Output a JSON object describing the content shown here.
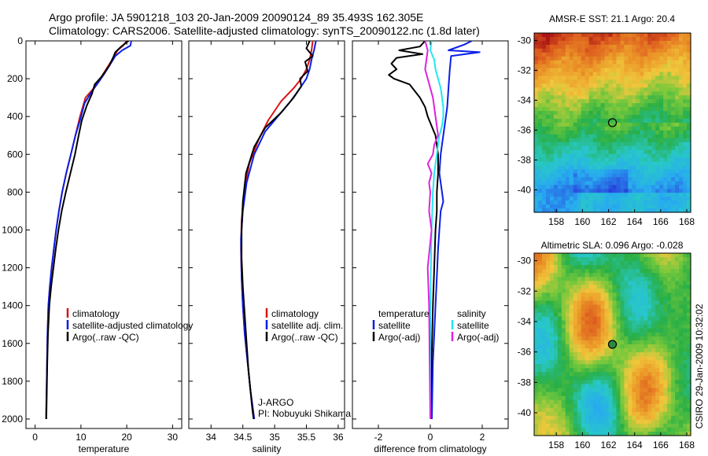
{
  "title": {
    "line1": "Argo profile: JA 5901218_103 20-Jan-2009 20090124_89 35.493S 162.305E",
    "line2": "Climatology: CARS2006. Satellite-adjusted climatology: synTS_20090122.nc (1.8d later)"
  },
  "credit": "CSIRO 29-Jan-2009 10:32:02",
  "colors": {
    "climatology": "#dd1111",
    "satellite": "#0a1ee6",
    "argo": "#000000",
    "sat_salinity": "#22e8f0",
    "argo_salinity": "#dd22dd"
  },
  "chart_data": [
    {
      "type": "line",
      "title": "",
      "xlabel": "temperature",
      "ylabel": "",
      "xlim": [
        -2,
        32
      ],
      "ylim": [
        2050,
        0
      ],
      "xticks": [
        "0",
        "10",
        "20",
        "30"
      ],
      "yticks": [
        "0",
        "200",
        "400",
        "600",
        "800",
        "1000",
        "1200",
        "1400",
        "1600",
        "1800",
        "2000"
      ],
      "legend": [
        "climatology",
        "satellite-adjusted climatology",
        "Argo(..raw -QC)"
      ],
      "series": [
        {
          "name": "climatology",
          "color": "#dd1111",
          "x": [
            20,
            19.2,
            18,
            16.8,
            15.5,
            14.2,
            12.8,
            11,
            9.8,
            8.8,
            7.8,
            6.8,
            5.9,
            5.2,
            4.6,
            4.1,
            3.6,
            3.2,
            2.9,
            2.7,
            2.6,
            2.5,
            2.4
          ],
          "y": [
            0,
            25,
            50,
            100,
            150,
            200,
            250,
            300,
            400,
            500,
            600,
            700,
            800,
            900,
            1000,
            1100,
            1200,
            1300,
            1400,
            1550,
            1700,
            1850,
            2000
          ]
        },
        {
          "name": "satellite-adjusted climatology",
          "color": "#0a1ee6",
          "x": [
            21,
            20.8,
            19,
            17.5,
            16.5,
            15.2,
            13.8,
            12.3,
            10.8,
            9.8,
            8.8,
            7.8,
            6.8,
            5.9,
            5.2,
            4.6,
            4.1,
            3.6,
            3.2,
            2.9,
            2.7,
            2.6,
            2.5,
            2.4
          ],
          "y": [
            0,
            25,
            50,
            80,
            120,
            170,
            220,
            270,
            330,
            420,
            500,
            600,
            700,
            800,
            900,
            1000,
            1100,
            1200,
            1300,
            1400,
            1550,
            1700,
            1850,
            2000
          ]
        },
        {
          "name": "Argo(..raw -QC)",
          "color": "#000000",
          "x": [
            20.4,
            18.8,
            17.5,
            17,
            16.2,
            14.5,
            13,
            12.4,
            11.3,
            10.2,
            9.5,
            8.7,
            7.7,
            6.7,
            5.8,
            5.1,
            4.5,
            4,
            3.5,
            3.1,
            2.8,
            2.65,
            2.55,
            2.45
          ],
          "y": [
            0,
            30,
            60,
            90,
            130,
            190,
            230,
            280,
            340,
            420,
            500,
            600,
            700,
            800,
            900,
            1000,
            1100,
            1200,
            1300,
            1400,
            1550,
            1700,
            1850,
            2000
          ]
        }
      ]
    },
    {
      "type": "line",
      "title": "",
      "xlabel": "salinity",
      "ylabel": "",
      "xlim": [
        33.65,
        36.1
      ],
      "ylim": [
        2050,
        0
      ],
      "xticks": [
        "34",
        "34.5",
        "35",
        "35.5",
        "36"
      ],
      "legend": [
        "climatology",
        "satellite adj. clim.",
        "Argo(..raw -QC)"
      ],
      "annotation": {
        "line1": "J-ARGO",
        "line2": "PI: Nobuyuki Shikama"
      },
      "series": [
        {
          "name": "climatology",
          "color": "#dd1111",
          "x": [
            35.6,
            35.58,
            35.55,
            35.5,
            35.42,
            35.3,
            35.1,
            34.9,
            34.75,
            34.6,
            34.52,
            34.48,
            34.47,
            34.48,
            34.5,
            34.53,
            34.56,
            34.59,
            34.62,
            34.64,
            34.66,
            34.68
          ],
          "y": [
            0,
            50,
            100,
            150,
            200,
            250,
            320,
            420,
            520,
            650,
            800,
            950,
            1100,
            1250,
            1400,
            1550,
            1650,
            1750,
            1850,
            1900,
            1950,
            2000
          ]
        },
        {
          "name": "satellite adj. clim.",
          "color": "#0a1ee6",
          "x": [
            35.65,
            35.62,
            35.58,
            35.55,
            35.5,
            35.4,
            35.25,
            35.05,
            34.85,
            34.68,
            34.56,
            34.5,
            34.47,
            34.48,
            34.5,
            34.53,
            34.56,
            34.59,
            34.62,
            34.64,
            34.66,
            34.68
          ],
          "y": [
            0,
            50,
            100,
            150,
            200,
            250,
            320,
            400,
            480,
            600,
            750,
            900,
            1050,
            1250,
            1400,
            1550,
            1650,
            1750,
            1850,
            1900,
            1950,
            2000
          ]
        },
        {
          "name": "Argo(..raw -QC)",
          "color": "#000000",
          "x": [
            35.55,
            35.5,
            35.6,
            35.48,
            35.52,
            35.4,
            35.42,
            35.3,
            35.1,
            34.85,
            34.68,
            34.55,
            34.5,
            34.48,
            34.48,
            34.5,
            34.53,
            34.56,
            34.59,
            34.62,
            34.65,
            34.67
          ],
          "y": [
            0,
            40,
            80,
            110,
            160,
            200,
            240,
            300,
            380,
            460,
            560,
            700,
            850,
            1000,
            1150,
            1300,
            1450,
            1600,
            1750,
            1850,
            1950,
            2000
          ]
        }
      ]
    },
    {
      "type": "line",
      "title": "",
      "xlabel": "difference from climatology",
      "ylabel": "",
      "xlim": [
        -3,
        3
      ],
      "ylim": [
        2050,
        0
      ],
      "xticks": [
        "-2",
        "0",
        "2"
      ],
      "legend_left": [
        "temperature",
        "satellite",
        "Argo(-adj)"
      ],
      "legend_right": [
        "salinity",
        "satellite",
        "Argo(-adj)"
      ],
      "series": [
        {
          "name": "temperature satellite",
          "color": "#0a1ee6",
          "x": [
            1.6,
            1.3,
            0.7,
            1.9,
            0.8,
            0.75,
            0.7,
            0.65,
            0.5,
            0.4,
            0.35,
            0.4,
            0.45,
            0.5,
            0.4,
            0.35,
            0.3,
            0.25,
            0.2,
            0.15,
            0.1,
            0.08,
            0.06
          ],
          "y": [
            0,
            20,
            50,
            60,
            80,
            150,
            250,
            350,
            500,
            600,
            700,
            750,
            800,
            850,
            900,
            1000,
            1100,
            1250,
            1400,
            1550,
            1700,
            1850,
            2000
          ]
        },
        {
          "name": "temperature Argo(-adj)",
          "color": "#000000",
          "x": [
            -0.2,
            -0.4,
            -1.2,
            -0.3,
            -1.3,
            -1.5,
            -1.3,
            -1.6,
            -1.4,
            -0.8,
            -0.4,
            -0.2,
            -0.1,
            0.2,
            0.3,
            0.3,
            0.25,
            0.25,
            0.2,
            0.15,
            0.1,
            0.05,
            0.0
          ],
          "y": [
            0,
            30,
            50,
            70,
            90,
            120,
            150,
            180,
            200,
            230,
            300,
            350,
            400,
            500,
            600,
            700,
            800,
            900,
            1000,
            1200,
            1400,
            1700,
            2000
          ]
        },
        {
          "name": "salinity satellite",
          "color": "#22e8f0",
          "x": [
            0.05,
            0.0,
            0.15,
            0.2,
            0.3,
            0.4,
            0.45,
            0.5,
            0.5,
            0.45,
            0.35,
            0.25,
            0.15,
            0.1,
            0.05,
            0.0,
            0.0
          ],
          "y": [
            0,
            50,
            100,
            150,
            200,
            250,
            300,
            350,
            400,
            450,
            500,
            600,
            700,
            800,
            1000,
            1400,
            2000
          ]
        },
        {
          "name": "salinity Argo(-adj)",
          "color": "#dd22dd",
          "x": [
            -0.2,
            -0.1,
            -0.2,
            0.1,
            0.2,
            0.3,
            0.15,
            0.1,
            -0.1,
            0.05,
            -0.05,
            0.0,
            -0.05,
            0.05,
            -0.1,
            -0.05,
            0.0
          ],
          "y": [
            0,
            50,
            150,
            300,
            400,
            500,
            550,
            600,
            650,
            700,
            750,
            800,
            900,
            1000,
            1200,
            1400,
            2000
          ]
        }
      ]
    },
    {
      "type": "heatmap",
      "title": "AMSR-E SST: 21.1 Argo: 20.4",
      "xlabel": "",
      "ylabel": "",
      "xlim": [
        156.3,
        168.3
      ],
      "ylim": [
        -41.5,
        -29.5
      ],
      "xticks": [
        "158",
        "160",
        "162",
        "164",
        "166",
        "168"
      ],
      "yticks": [
        "-30",
        "-32",
        "-34",
        "-36",
        "-38",
        "-40"
      ],
      "marker": {
        "lon": 162.3,
        "lat": -35.5
      }
    },
    {
      "type": "heatmap",
      "title": "Altimetric SLA: 0.096 Argo: -0.028",
      "xlabel": "",
      "ylabel": "",
      "xlim": [
        156.3,
        168.3
      ],
      "ylim": [
        -41.5,
        -29.5
      ],
      "xticks": [
        "158",
        "160",
        "162",
        "164",
        "166",
        "168"
      ],
      "yticks": [
        "-30",
        "-32",
        "-34",
        "-36",
        "-38",
        "-40"
      ],
      "marker": {
        "lon": 162.3,
        "lat": -35.5
      }
    }
  ]
}
